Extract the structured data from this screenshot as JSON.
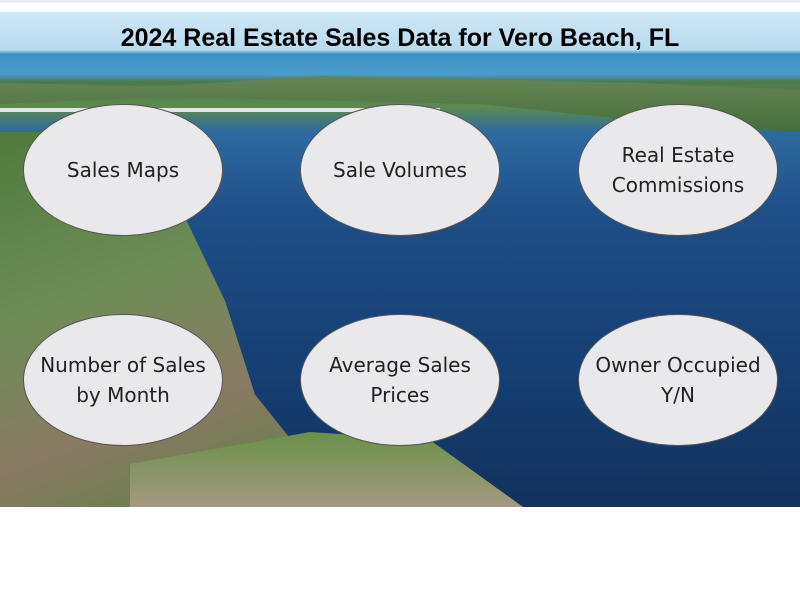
{
  "title": "2024 Real Estate Sales Data for Vero Beach, FL",
  "buttons": [
    {
      "label": "Sales Maps"
    },
    {
      "label": "Sale Volumes"
    },
    {
      "label": "Real Estate Commissions"
    },
    {
      "label": "Number of Sales by Month"
    },
    {
      "label": "Average Sales Prices"
    },
    {
      "label": "Owner Occupied Y/N"
    }
  ],
  "colors": {
    "oval_fill": "#e9e8ea",
    "title": "#000000"
  }
}
